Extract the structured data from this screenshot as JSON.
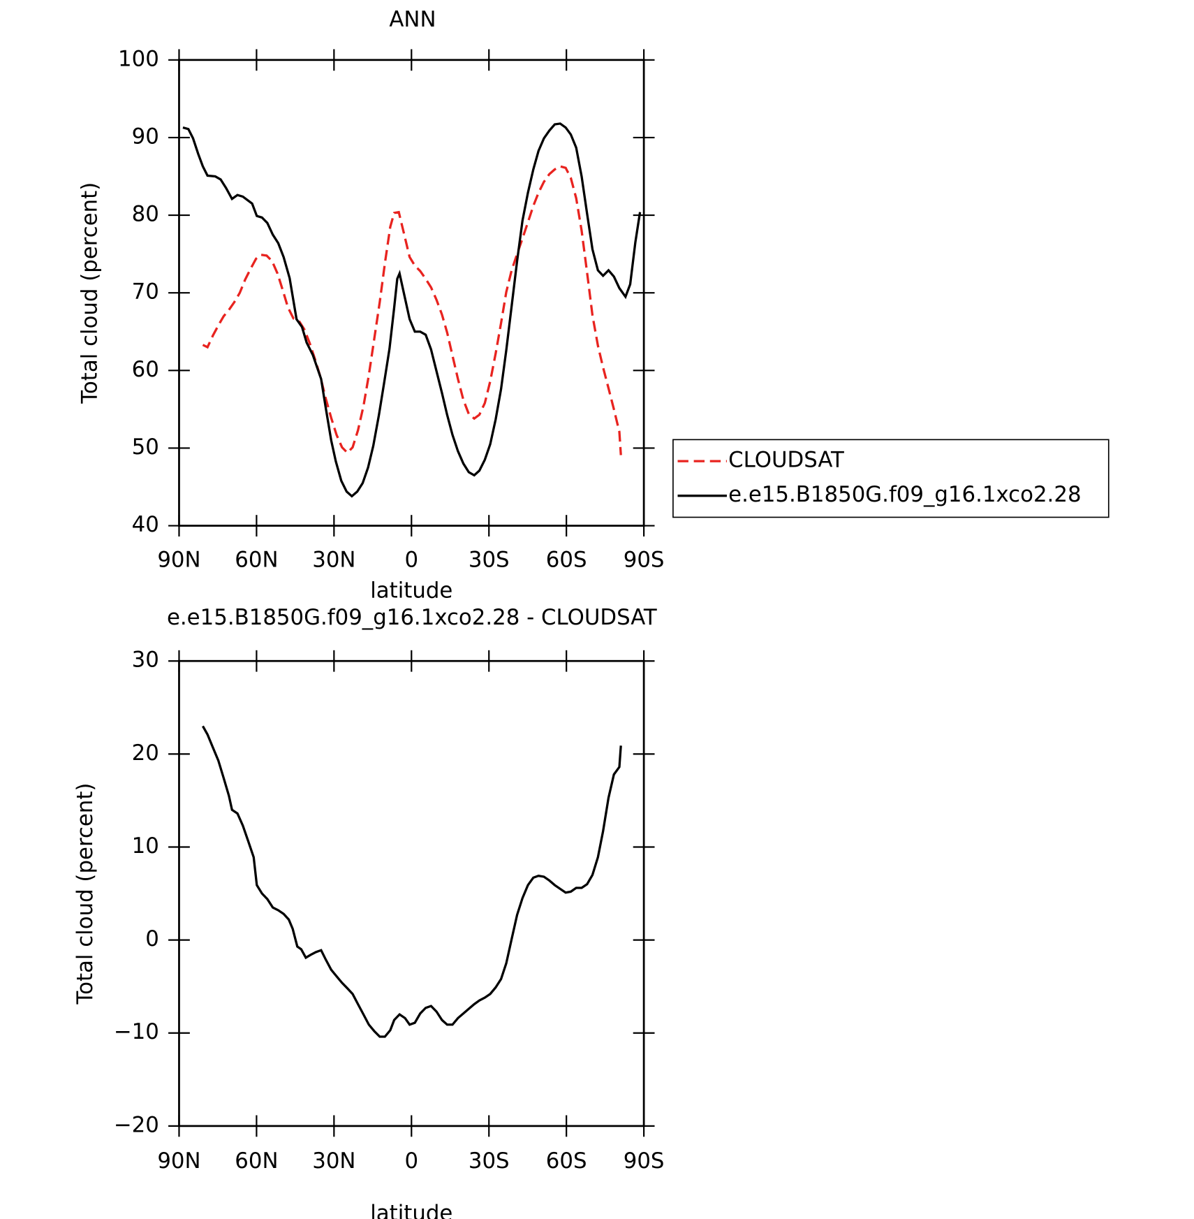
{
  "chart_data": [
    {
      "type": "line",
      "title": "ANN",
      "xlabel": "latitude",
      "ylabel": "Total cloud (percent)",
      "xlim": [
        90,
        -90
      ],
      "xticks": [
        {
          "value": 90,
          "label": "90N"
        },
        {
          "value": 60,
          "label": "60N"
        },
        {
          "value": 30,
          "label": "30N"
        },
        0,
        {
          "value": -30,
          "label": "30S"
        },
        {
          "value": -60,
          "label": "60S"
        },
        {
          "value": -90,
          "label": "90S"
        }
      ],
      "ylim": [
        40,
        100
      ],
      "yticks": [
        40,
        50,
        60,
        70,
        80,
        90,
        100
      ],
      "legend": "right",
      "series": [
        {
          "name": "CLOUDSAT",
          "color": "#e8231f",
          "dash": true,
          "x": [
            80.8,
            79,
            76.9,
            74.8,
            72.7,
            70.7,
            68.6,
            66.5,
            64.4,
            62.3,
            60.2,
            58.2,
            56.1,
            54,
            51.9,
            49.8,
            47.8,
            45.7,
            43.6,
            41.5,
            39.4,
            37.3,
            35.3,
            33.2,
            31.1,
            29,
            26.9,
            24.8,
            22.8,
            20.7,
            18.6,
            16.5,
            14.4,
            12.3,
            10.3,
            8.2,
            6.7,
            4.9,
            2.8,
            0.7,
            -1.3,
            -3.4,
            -5.5,
            -7.6,
            -9.7,
            -11.8,
            -13.8,
            -15.9,
            -18,
            -20.1,
            -22.2,
            -24.3,
            -26.3,
            -28.4,
            -30.5,
            -32.6,
            -34.7,
            -36.7,
            -38.8,
            -40.9,
            -43,
            -45.1,
            -47.2,
            -49.2,
            -51.3,
            -53.4,
            -55.5,
            -57.6,
            -59.7,
            -61.7,
            -63.8,
            -65.9,
            -68,
            -70.1,
            -72.2,
            -74.2,
            -76.3,
            -78.4,
            -80.5,
            -81.1
          ],
          "values": [
            63.3,
            63,
            64.5,
            65.8,
            67,
            67.8,
            68.8,
            70,
            71.7,
            73.1,
            74.4,
            74.9,
            74.8,
            74.1,
            72.5,
            70.3,
            68.1,
            66.7,
            66.4,
            65.3,
            63.5,
            61.4,
            59.2,
            56.4,
            53.9,
            51.7,
            50.1,
            49.4,
            50.1,
            52.3,
            55.4,
            59.4,
            64.1,
            68.8,
            73.8,
            78.5,
            80.3,
            80.4,
            77.5,
            74.6,
            73.5,
            72.8,
            71.8,
            70.7,
            69.1,
            67.2,
            64.9,
            61.9,
            58.9,
            56.2,
            54.4,
            53.8,
            54.3,
            55.8,
            58.6,
            62.2,
            66.1,
            70.1,
            72.9,
            75,
            77,
            79.1,
            81.2,
            82.9,
            84.3,
            85.3,
            85.9,
            86.3,
            86.1,
            84.8,
            82.2,
            78,
            72.6,
            67.1,
            63.2,
            60.4,
            57.7,
            55,
            52.1,
            49.1
          ]
        },
        {
          "name": "e.e15.B1850G.f09_g16.1xco2.28",
          "color": "#000000",
          "dash": false,
          "x": [
            88.5,
            86.4,
            84.6,
            82.6,
            80.8,
            79,
            76,
            73.9,
            71.8,
            69.5,
            67.4,
            65.3,
            61.7,
            59.9,
            57.9,
            55.8,
            53.7,
            51.6,
            49.5,
            47.2,
            44.5,
            42.4,
            40.6,
            38.2,
            35,
            33.2,
            31.1,
            29.3,
            27.2,
            25.1,
            23.1,
            21,
            18.9,
            16.8,
            14.8,
            12.6,
            10.6,
            8.5,
            6.7,
            5.5,
            4.6,
            2.5,
            0.7,
            -1.3,
            -3.4,
            -5.5,
            -7.6,
            -9.7,
            -11.8,
            -13.8,
            -15.9,
            -18,
            -20.1,
            -22.2,
            -24.3,
            -26.3,
            -28.4,
            -30.5,
            -32.6,
            -34.7,
            -36.7,
            -38.8,
            -40.9,
            -43,
            -45.1,
            -47.2,
            -49.2,
            -51.3,
            -53.4,
            -55.5,
            -57.6,
            -59.7,
            -61.7,
            -63.8,
            -65.9,
            -68,
            -70.1,
            -72.2,
            -74.2,
            -76.3,
            -78.4,
            -80.5,
            -82.9,
            -84.7,
            -86.7,
            -88.5
          ],
          "values": [
            91.3,
            91.1,
            89.9,
            87.9,
            86.3,
            85.1,
            85,
            84.6,
            83.5,
            82.1,
            82.6,
            82.4,
            81.5,
            79.9,
            79.7,
            79,
            77.5,
            76.4,
            74.6,
            71.9,
            66.6,
            65.6,
            63.6,
            62,
            58.9,
            55.2,
            51,
            48.3,
            45.8,
            44.4,
            43.8,
            44.4,
            45.5,
            47.5,
            50.3,
            54.3,
            58.4,
            62.8,
            68.1,
            71.8,
            72.5,
            69.3,
            66.6,
            65,
            65,
            64.6,
            62.7,
            59.9,
            57.1,
            54.3,
            51.7,
            49.6,
            48,
            46.9,
            46.5,
            47.1,
            48.5,
            50.5,
            53.7,
            57.6,
            62.6,
            68.3,
            74.1,
            79.3,
            82.9,
            85.9,
            88.3,
            89.9,
            90.9,
            91.7,
            91.8,
            91.3,
            90.4,
            88.7,
            85,
            80.2,
            75.6,
            72.9,
            72.2,
            72.9,
            72.1,
            70.6,
            69.5,
            71.1,
            76.5,
            80.4
          ]
        }
      ]
    },
    {
      "type": "line",
      "title": "e.e15.B1850G.f09_g16.1xco2.28 - CLOUDSAT",
      "xlabel": "latitude",
      "ylabel": "Total cloud (percent)",
      "xlim": [
        90,
        -90
      ],
      "xticks": [
        {
          "value": 90,
          "label": "90N"
        },
        {
          "value": 60,
          "label": "60N"
        },
        {
          "value": 30,
          "label": "30N"
        },
        0,
        {
          "value": -30,
          "label": "30S"
        },
        {
          "value": -60,
          "label": "60S"
        },
        {
          "value": -90,
          "label": "90S"
        }
      ],
      "ylim": [
        -20,
        30
      ],
      "yticks": [
        {
          "value": -20,
          "label": "−20"
        },
        {
          "value": -10,
          "label": "−10"
        },
        0,
        10,
        20,
        30
      ],
      "series": [
        {
          "color": "#000000",
          "dash": false,
          "x": [
            80.8,
            79,
            76.9,
            74.8,
            72.7,
            70.7,
            69.5,
            67.4,
            65.3,
            63.2,
            61.1,
            59.9,
            57.9,
            55.8,
            53.7,
            51.6,
            49.5,
            47.5,
            46,
            44.2,
            42.7,
            40.9,
            39.1,
            37,
            35,
            33.2,
            31.1,
            29,
            26.9,
            24.8,
            22.8,
            20.7,
            18.6,
            16.5,
            14.4,
            12.3,
            10.3,
            8.2,
            6.7,
            4.6,
            2.5,
            0.7,
            -1.3,
            -3.4,
            -5.5,
            -7.6,
            -9.7,
            -11.8,
            -13.8,
            -15.9,
            -18,
            -20.1,
            -22.2,
            -24.3,
            -26.3,
            -28.4,
            -30.5,
            -32.6,
            -34.7,
            -36.7,
            -38.8,
            -40.9,
            -43,
            -45.1,
            -47.2,
            -49.2,
            -51.3,
            -53.4,
            -55.5,
            -57.6,
            -59.7,
            -61.7,
            -63.8,
            -65.9,
            -68,
            -70.1,
            -72.2,
            -74.2,
            -76.3,
            -78.4,
            -80.5,
            -81.1
          ],
          "values": [
            23,
            22.1,
            20.7,
            19.3,
            17.4,
            15.5,
            14,
            13.6,
            12.3,
            10.6,
            8.9,
            5.9,
            5,
            4.4,
            3.5,
            3.2,
            2.8,
            2.2,
            1.2,
            -0.7,
            -1,
            -1.9,
            -1.6,
            -1.3,
            -1.1,
            -2.1,
            -3.2,
            -3.9,
            -4.6,
            -5.2,
            -5.8,
            -6.9,
            -8,
            -9.1,
            -9.8,
            -10.4,
            -10.4,
            -9.7,
            -8.6,
            -8,
            -8.4,
            -9.1,
            -8.9,
            -7.9,
            -7.3,
            -7.1,
            -7.7,
            -8.6,
            -9.1,
            -9.1,
            -8.4,
            -7.9,
            -7.4,
            -6.9,
            -6.5,
            -6.2,
            -5.8,
            -5.1,
            -4.2,
            -2.5,
            0.1,
            2.7,
            4.5,
            5.9,
            6.7,
            6.9,
            6.8,
            6.4,
            5.9,
            5.5,
            5.1,
            5.2,
            5.6,
            5.6,
            6,
            7,
            8.9,
            11.7,
            15.3,
            17.8,
            18.6,
            20.9
          ]
        }
      ]
    }
  ]
}
